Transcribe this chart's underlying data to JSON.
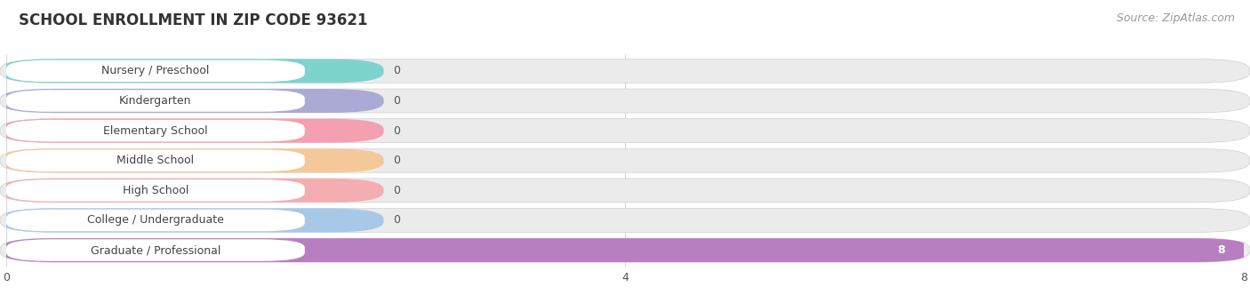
{
  "title": "SCHOOL ENROLLMENT IN ZIP CODE 93621",
  "source": "Source: ZipAtlas.com",
  "categories": [
    "Nursery / Preschool",
    "Kindergarten",
    "Elementary School",
    "Middle School",
    "High School",
    "College / Undergraduate",
    "Graduate / Professional"
  ],
  "values": [
    0,
    0,
    0,
    0,
    0,
    0,
    8
  ],
  "bar_colors": [
    "#7dd4cc",
    "#aaaad4",
    "#f4a0b0",
    "#f5c89a",
    "#f4adb0",
    "#a8c8e8",
    "#b87fc0"
  ],
  "label_bg_color": "#ffffff",
  "bar_bg_color": "#ebebeb",
  "xlim_max": 8,
  "xticks": [
    0,
    4,
    8
  ],
  "title_fontsize": 12,
  "source_fontsize": 9,
  "label_fontsize": 9,
  "value_fontsize": 9,
  "background_color": "#ffffff",
  "grid_color": "#d8d8d8",
  "value_label_color_inside": "#ffffff",
  "value_label_color_outside": "#555555"
}
